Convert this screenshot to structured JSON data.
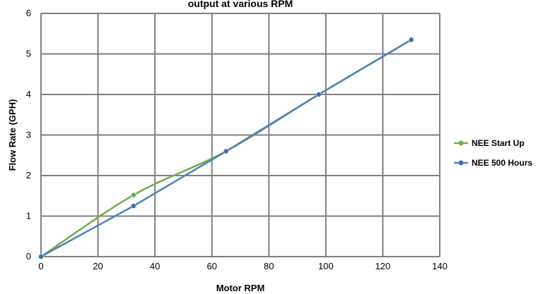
{
  "chart_data": {
    "type": "line",
    "title": "output at various RPM",
    "xlabel": "Motor RPM",
    "ylabel": "Flow Rate (GPH)",
    "xlim": [
      0,
      140
    ],
    "ylim": [
      0,
      6
    ],
    "x_ticks": [
      "0",
      "20",
      "40",
      "60",
      "80",
      "100",
      "120",
      "140"
    ],
    "y_ticks": [
      "0",
      "1",
      "2",
      "3",
      "4",
      "5",
      "6"
    ],
    "grid": true,
    "legend_position": "right",
    "series": [
      {
        "name": "NEE Start Up",
        "color": "#70ad47",
        "smooth": true,
        "points": [
          [
            0,
            0
          ],
          [
            32.5,
            1.52
          ],
          [
            65,
            2.6
          ],
          [
            97.5,
            4.0
          ],
          [
            130,
            5.35
          ]
        ]
      },
      {
        "name": "NEE 500 Hours",
        "color": "#4f81bd",
        "marker_color": "#3f6fb0",
        "smooth": false,
        "points": [
          [
            0,
            0
          ],
          [
            32.5,
            1.25
          ],
          [
            65,
            2.6
          ],
          [
            97.5,
            4.0
          ],
          [
            130,
            5.35
          ]
        ]
      }
    ]
  }
}
